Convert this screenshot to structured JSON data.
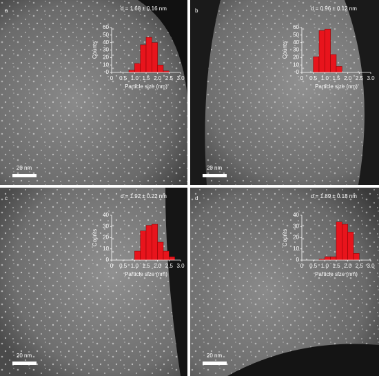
{
  "chart_data": [
    {
      "type": "histogram",
      "panel_label": "a",
      "annotation": "d = 1.68 ± 0.16 nm",
      "xlabel": "Particle size (nm)",
      "ylabel": "Counts",
      "bins": [
        0.75,
        1.0,
        1.25,
        1.5,
        1.75,
        2.0,
        2.25,
        2.5
      ],
      "counts": [
        3,
        12,
        37,
        47,
        40,
        10,
        2
      ],
      "color": "#e8141c",
      "xlim": [
        0,
        3
      ],
      "xticks": [
        0,
        0.5,
        {
          "value": 1,
          "label": "1.0"
        },
        1.5,
        {
          "value": 2,
          "label": "2.0"
        },
        2.5,
        {
          "value": 3,
          "label": "3.0"
        }
      ],
      "ylim": [
        0,
        60
      ],
      "yticks": [
        0,
        10,
        20,
        30,
        40,
        50,
        60
      ],
      "scale_bar": "20 nm"
    },
    {
      "type": "histogram",
      "panel_label": "b",
      "annotation": "d = 0.96 ± 0.12 nm",
      "xlabel": "Particle size (nm)",
      "ylabel": "Counts",
      "bins": [
        0.5,
        0.75,
        1.0,
        1.25,
        1.5,
        1.75
      ],
      "counts": [
        21,
        56,
        58,
        24,
        8
      ],
      "color": "#e8141c",
      "xlim": [
        0,
        3
      ],
      "xticks": [
        0,
        0.5,
        {
          "value": 1,
          "label": "1.0"
        },
        1.5,
        {
          "value": 2,
          "label": "2.0"
        },
        2.5,
        {
          "value": 3,
          "label": "3.0"
        }
      ],
      "ylim": [
        0,
        60
      ],
      "yticks": [
        0,
        10,
        20,
        30,
        40,
        50,
        60
      ],
      "scale_bar": "20 nm"
    },
    {
      "type": "histogram",
      "panel_label": "c",
      "annotation": "d = 1.92 ± 0.22 nm",
      "xlabel": "Particle size (nm)",
      "ylabel": "Counts",
      "bins": [
        1.0,
        1.25,
        1.5,
        1.75,
        2.0,
        2.25,
        2.5,
        2.75
      ],
      "counts": [
        8,
        26,
        31,
        32,
        16,
        8,
        3
      ],
      "color": "#e8141c",
      "xlim": [
        0,
        3
      ],
      "xticks": [
        0,
        0.5,
        {
          "value": 1,
          "label": "1.0"
        },
        1.5,
        {
          "value": 2,
          "label": "2.0"
        },
        2.5,
        {
          "value": 3,
          "label": "3.0"
        }
      ],
      "ylim": [
        0,
        40
      ],
      "yticks": [
        0,
        10,
        20,
        30,
        40
      ],
      "scale_bar": "20 nm"
    },
    {
      "type": "histogram",
      "panel_label": "d",
      "annotation": "d = 1.89 ± 0.18 nm",
      "xlabel": "Particle size (nm)",
      "ylabel": "Counts",
      "bins": [
        0.75,
        1.0,
        1.25,
        1.5,
        1.75,
        2.0,
        2.25,
        2.5
      ],
      "counts": [
        1,
        3,
        3,
        34,
        32,
        25,
        6
      ],
      "color": "#e8141c",
      "xlim": [
        0,
        3
      ],
      "xticks": [
        0,
        0.5,
        {
          "value": 1,
          "label": "1.0"
        },
        1.5,
        {
          "value": 2,
          "label": "2.0"
        },
        2.5,
        {
          "value": 3,
          "label": "3.0"
        }
      ],
      "ylim": [
        0,
        40
      ],
      "yticks": [
        0,
        10,
        20,
        30,
        40
      ],
      "scale_bar": "20 nm"
    }
  ]
}
